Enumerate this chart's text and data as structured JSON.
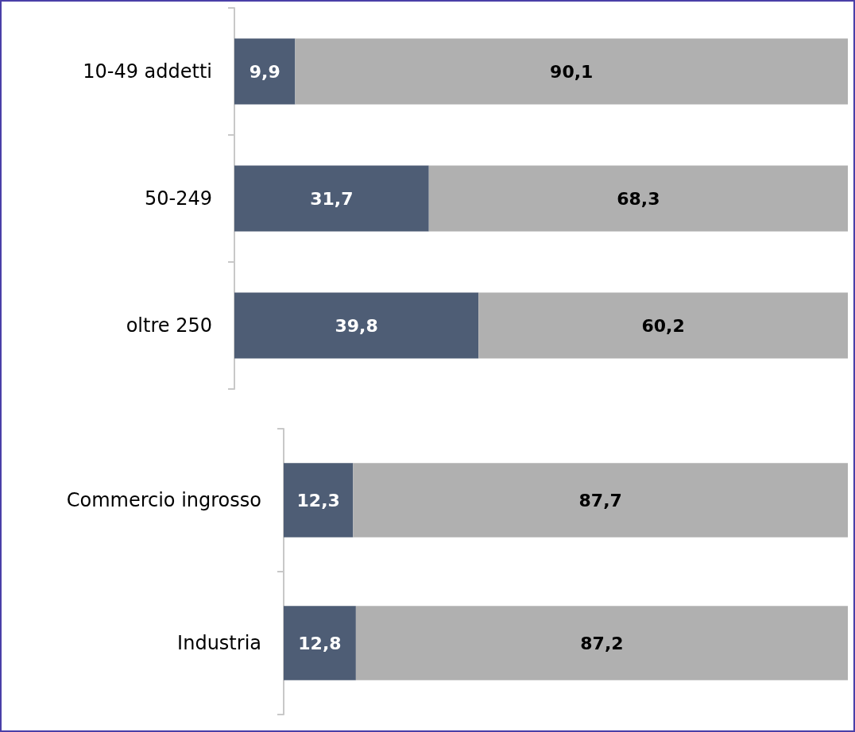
{
  "chart_data": [
    {
      "type": "bar",
      "orientation": "horizontal",
      "stacked": true,
      "categories": [
        "10-49 addetti",
        "50-249",
        "oltre 250"
      ],
      "xlim": [
        0,
        100
      ],
      "tick_labels": "y",
      "series": [
        {
          "color": "#4e5d75",
          "values": [
            9.9,
            31.7,
            39.8
          ],
          "value_labels": [
            "9,9",
            "31,7",
            "39,8"
          ]
        },
        {
          "color": "#b0b0b0",
          "values": [
            90.1,
            68.3,
            60.2
          ],
          "value_labels": [
            "90,1",
            "68,3",
            "60,2"
          ]
        }
      ]
    },
    {
      "type": "bar",
      "orientation": "horizontal",
      "stacked": true,
      "categories": [
        "Commercio ingrosso",
        "Industria"
      ],
      "xlim": [
        0,
        100
      ],
      "tick_labels": "y",
      "series": [
        {
          "color": "#4e5d75",
          "values": [
            12.3,
            12.8
          ],
          "value_labels": [
            "12,3",
            "12,8"
          ]
        },
        {
          "color": "#b0b0b0",
          "values": [
            87.7,
            87.2
          ],
          "value_labels": [
            "87,7",
            "87,2"
          ]
        }
      ]
    }
  ]
}
